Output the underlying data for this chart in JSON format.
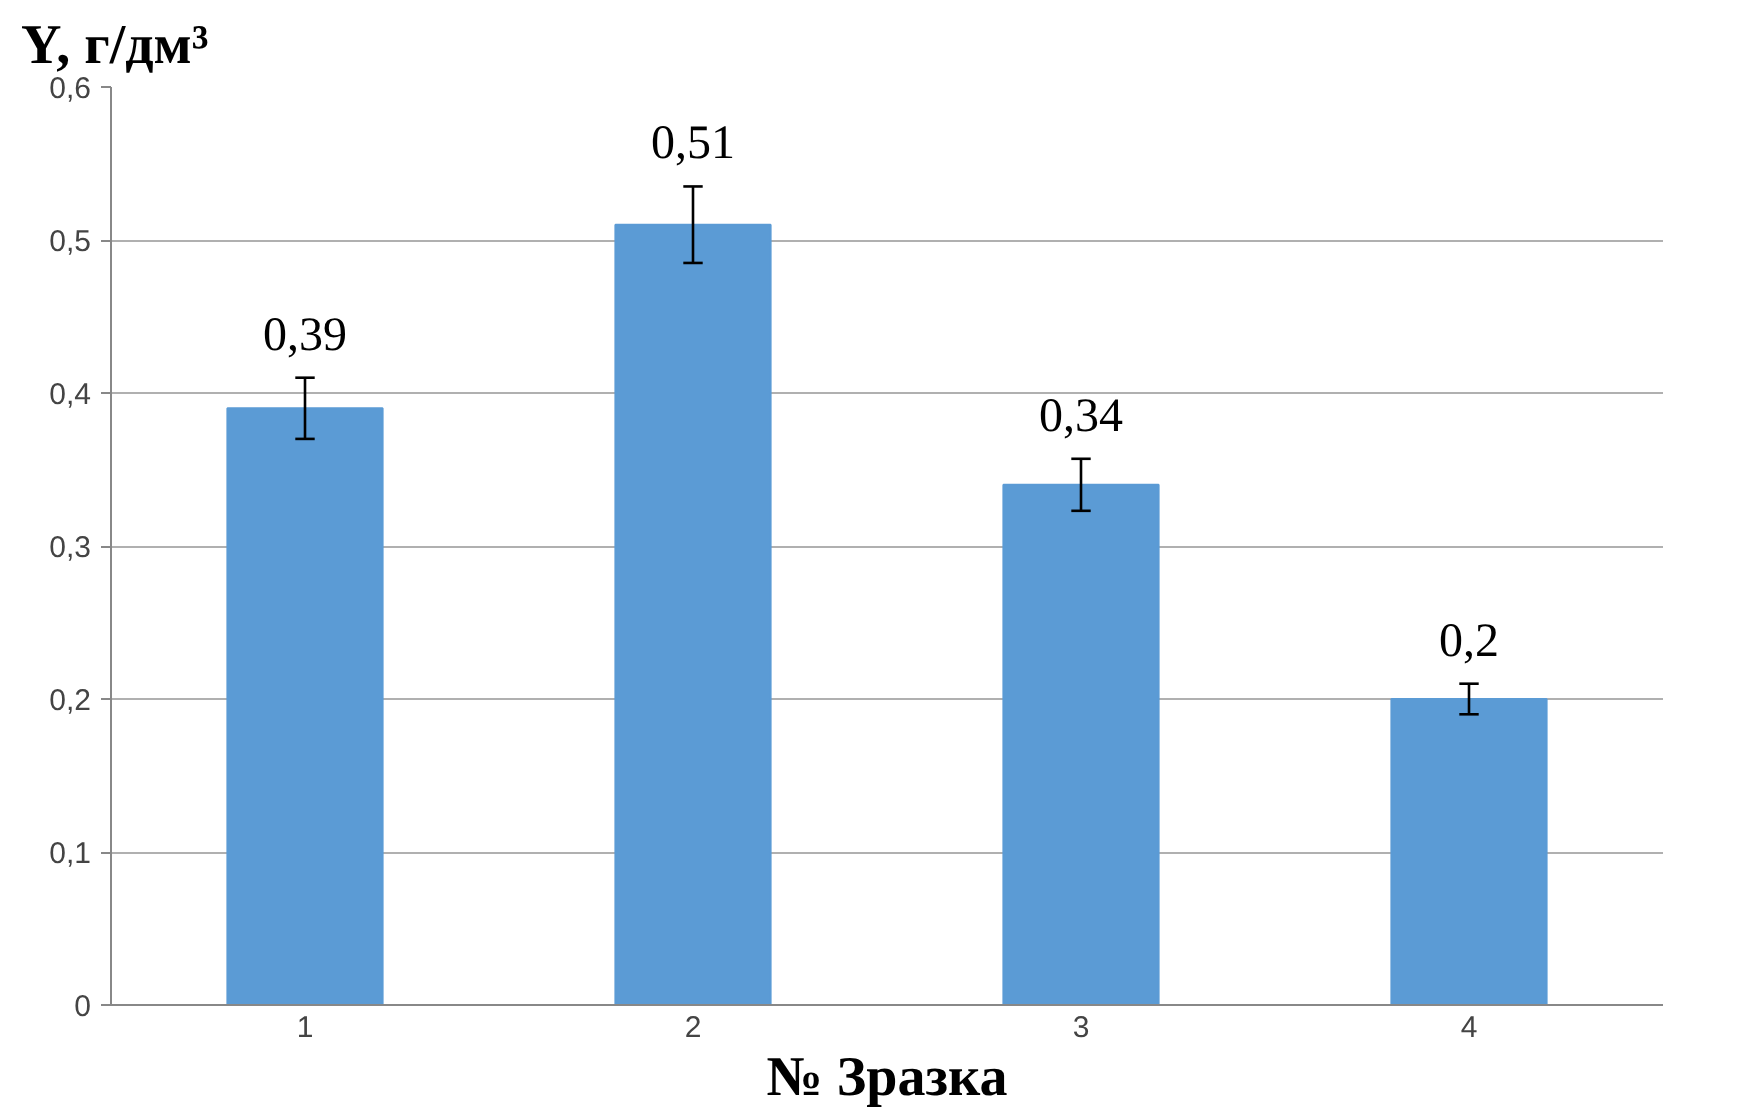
{
  "chart_data": {
    "type": "bar",
    "ylabel": "Y, г/дм³",
    "xlabel": "№ Зразка",
    "categories": [
      "1",
      "2",
      "3",
      "4"
    ],
    "values": [
      0.39,
      0.51,
      0.34,
      0.2
    ],
    "errors": [
      0.02,
      0.025,
      0.017,
      0.01
    ],
    "value_labels": [
      "0,39",
      "0,51",
      "0,34",
      "0,2"
    ],
    "color": "#5b9bd5",
    "ylim": [
      0,
      0.6
    ],
    "yticks": [
      {
        "value": 0,
        "label": "0"
      },
      {
        "value": 0.1,
        "label": "0,1"
      },
      {
        "value": 0.2,
        "label": "0,2"
      },
      {
        "value": 0.3,
        "label": "0,3"
      },
      {
        "value": 0.4,
        "label": "0,4"
      },
      {
        "value": 0.5,
        "label": "0,5"
      },
      {
        "value": 0.6,
        "label": "0,6"
      }
    ],
    "grid": "y"
  }
}
